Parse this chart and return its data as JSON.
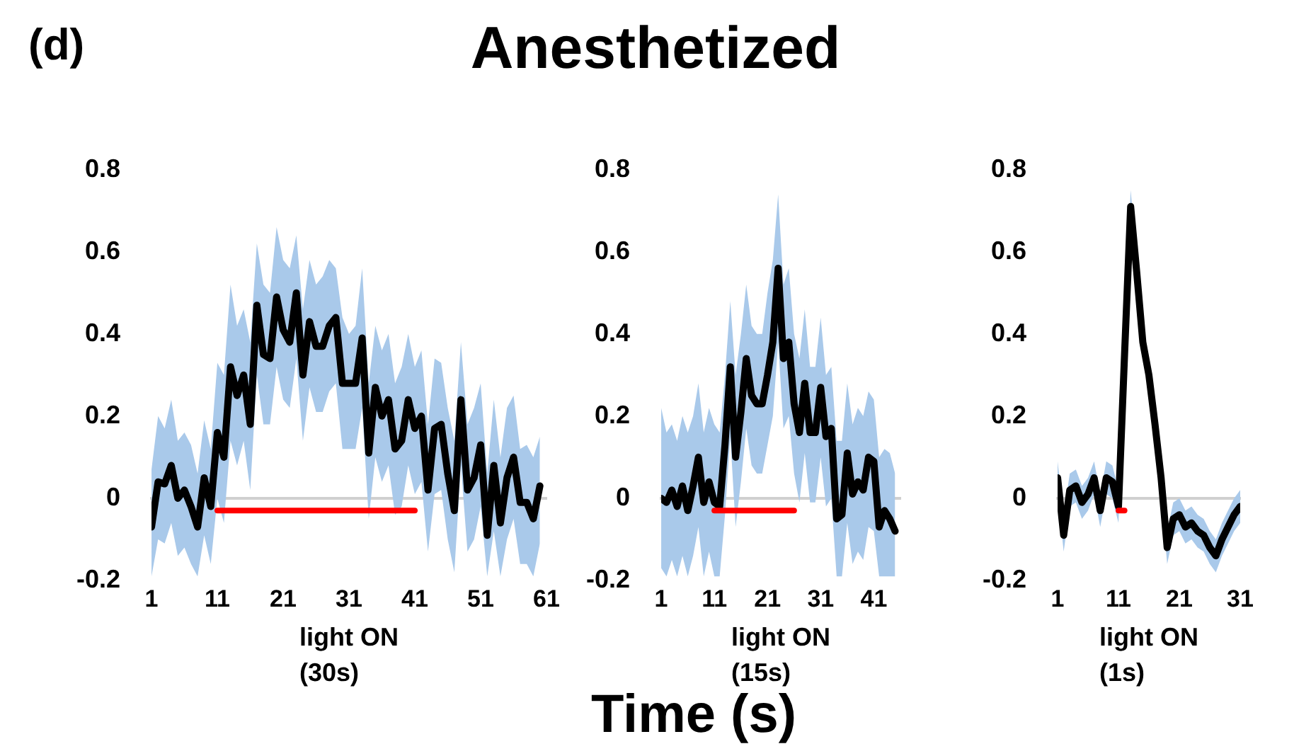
{
  "chart_data": [
    {
      "type": "line",
      "title": "Anesthetized",
      "annotations": [
        "(d)"
      ],
      "xlabel": "light ON\n(30s)",
      "xlim": [
        1,
        61
      ],
      "xticks": [
        1,
        11,
        21,
        31,
        41,
        51,
        61
      ],
      "ylim": [
        -0.2,
        0.8
      ],
      "yticks": [
        -0.2,
        0,
        0.2,
        0.4,
        0.6,
        0.8
      ],
      "legend": false,
      "series": [
        {
          "color": "#000000",
          "x": [
            1,
            2,
            3,
            4,
            5,
            6,
            7,
            8,
            9,
            10,
            11,
            12,
            13,
            14,
            15,
            16,
            17,
            18,
            19,
            20,
            21,
            22,
            23,
            24,
            25,
            26,
            27,
            28,
            29,
            30,
            31,
            32,
            33,
            34,
            35,
            36,
            37,
            38,
            39,
            40,
            41,
            42,
            43,
            44,
            45,
            46,
            47,
            48,
            49,
            50,
            51,
            52,
            53,
            54,
            55,
            56,
            57,
            58,
            59,
            60
          ],
          "values": [
            -0.07,
            0.04,
            0.035,
            0.08,
            0,
            0.02,
            -0.02,
            -0.07,
            0.05,
            -0.02,
            0.16,
            0.1,
            0.32,
            0.25,
            0.3,
            0.18,
            0.47,
            0.35,
            0.34,
            0.49,
            0.41,
            0.38,
            0.5,
            0.3,
            0.43,
            0.37,
            0.37,
            0.42,
            0.44,
            0.28,
            0.28,
            0.28,
            0.39,
            0.11,
            0.27,
            0.2,
            0.24,
            0.12,
            0.14,
            0.24,
            0.17,
            0.2,
            0.02,
            0.17,
            0.18,
            0.06,
            -0.03,
            0.24,
            0.02,
            0.05,
            0.13,
            -0.09,
            0.08,
            -0.06,
            0.05,
            0.1,
            -0.01,
            -0.01,
            -0.05,
            0.03
          ],
          "upper": [
            0.07,
            0.2,
            0.17,
            0.24,
            0.14,
            0.16,
            0.13,
            0.06,
            0.19,
            0.12,
            0.33,
            0.3,
            0.52,
            0.42,
            0.46,
            0.38,
            0.62,
            0.52,
            0.5,
            0.66,
            0.58,
            0.56,
            0.64,
            0.46,
            0.58,
            0.52,
            0.54,
            0.58,
            0.56,
            0.44,
            0.4,
            0.42,
            0.56,
            0.28,
            0.42,
            0.36,
            0.4,
            0.28,
            0.32,
            0.4,
            0.32,
            0.36,
            0.18,
            0.34,
            0.33,
            0.22,
            0.14,
            0.38,
            0.18,
            0.22,
            0.28,
            0.06,
            0.24,
            0.1,
            0.22,
            0.25,
            0.12,
            0.13,
            0.1,
            0.15
          ],
          "lower": [
            -0.19,
            -0.1,
            -0.11,
            -0.06,
            -0.14,
            -0.12,
            -0.16,
            -0.19,
            -0.09,
            -0.16,
            0.0,
            -0.06,
            0.14,
            0.08,
            0.14,
            0.02,
            0.3,
            0.18,
            0.18,
            0.32,
            0.24,
            0.22,
            0.34,
            0.14,
            0.27,
            0.21,
            0.21,
            0.26,
            0.28,
            0.12,
            0.12,
            0.12,
            0.22,
            -0.05,
            0.1,
            0.04,
            0.08,
            -0.04,
            -0.02,
            0.08,
            0.01,
            0.04,
            -0.13,
            0.01,
            0.02,
            -0.1,
            -0.18,
            0.08,
            -0.13,
            -0.1,
            -0.02,
            -0.19,
            -0.08,
            -0.19,
            -0.1,
            -0.05,
            -0.16,
            -0.16,
            -0.19,
            -0.11
          ]
        },
        {
          "color": "#ff0000",
          "x": [
            11,
            41
          ],
          "values": [
            -0.03,
            -0.03
          ]
        }
      ]
    },
    {
      "type": "line",
      "xlabel": "light ON\n(15s)",
      "annotations": [
        "Time (s)"
      ],
      "xlim": [
        1,
        46
      ],
      "xticks": [
        1,
        11,
        21,
        31,
        41
      ],
      "ylim": [
        -0.2,
        0.8
      ],
      "yticks": [
        -0.2,
        0,
        0.2,
        0.4,
        0.6,
        0.8
      ],
      "legend": false,
      "series": [
        {
          "color": "#000000",
          "x": [
            1,
            2,
            3,
            4,
            5,
            6,
            7,
            8,
            9,
            10,
            11,
            12,
            13,
            14,
            15,
            16,
            17,
            18,
            19,
            20,
            21,
            22,
            23,
            24,
            25,
            26,
            27,
            28,
            29,
            30,
            31,
            32,
            33,
            34,
            35,
            36,
            37,
            38,
            39,
            40,
            41,
            42,
            43,
            44,
            45
          ],
          "values": [
            0,
            -0.01,
            0.02,
            -0.02,
            0.03,
            -0.03,
            0.03,
            0.1,
            -0.01,
            0.04,
            -0.01,
            -0.02,
            0.13,
            0.32,
            0.1,
            0.21,
            0.34,
            0.25,
            0.23,
            0.23,
            0.3,
            0.38,
            0.56,
            0.34,
            0.38,
            0.23,
            0.16,
            0.28,
            0.16,
            0.16,
            0.27,
            0.15,
            0.17,
            -0.05,
            -0.04,
            0.11,
            0.01,
            0.04,
            0.02,
            0.1,
            0.09,
            -0.07,
            -0.03,
            -0.05,
            -0.08
          ],
          "upper": [
            0.22,
            0.16,
            0.18,
            0.14,
            0.2,
            0.16,
            0.2,
            0.28,
            0.16,
            0.22,
            0.18,
            0.16,
            0.3,
            0.48,
            0.3,
            0.4,
            0.52,
            0.42,
            0.4,
            0.4,
            0.5,
            0.58,
            0.74,
            0.52,
            0.56,
            0.4,
            0.34,
            0.46,
            0.32,
            0.32,
            0.44,
            0.3,
            0.32,
            0.14,
            0.14,
            0.28,
            0.18,
            0.22,
            0.2,
            0.26,
            0.24,
            0.1,
            0.12,
            0.11,
            0.06
          ],
          "lower": [
            -0.17,
            -0.19,
            -0.15,
            -0.19,
            -0.14,
            -0.19,
            -0.14,
            -0.07,
            -0.19,
            -0.13,
            -0.19,
            -0.19,
            -0.04,
            0.15,
            -0.07,
            0.04,
            0.17,
            0.08,
            0.06,
            0.06,
            0.13,
            0.2,
            0.38,
            0.17,
            0.2,
            0.06,
            -0.01,
            0.11,
            -0.01,
            -0.01,
            0.1,
            -0.02,
            0.0,
            -0.19,
            -0.19,
            -0.06,
            -0.16,
            -0.13,
            -0.15,
            -0.07,
            -0.08,
            -0.19,
            -0.19,
            -0.19,
            -0.19
          ]
        },
        {
          "color": "#ff0000",
          "x": [
            11,
            26
          ],
          "values": [
            -0.03,
            -0.03
          ]
        }
      ]
    },
    {
      "type": "line",
      "xlabel": "light ON\n(1s)",
      "xlim": [
        1,
        31
      ],
      "xticks": [
        1,
        11,
        21,
        31
      ],
      "ylim": [
        -0.2,
        0.8
      ],
      "yticks": [
        -0.2,
        0,
        0.2,
        0.4,
        0.6,
        0.8
      ],
      "legend": false,
      "series": [
        {
          "color": "#000000",
          "x": [
            1,
            2,
            3,
            4,
            5,
            6,
            7,
            8,
            9,
            10,
            11,
            12,
            13,
            14,
            15,
            16,
            17,
            18,
            19,
            20,
            21,
            22,
            23,
            24,
            25,
            26,
            27,
            28,
            29,
            30,
            31
          ],
          "values": [
            0.05,
            -0.09,
            0.02,
            0.03,
            -0.01,
            0.01,
            0.05,
            -0.03,
            0.05,
            0.04,
            -0.02,
            0.35,
            0.71,
            0.55,
            0.38,
            0.3,
            0.18,
            0.05,
            -0.12,
            -0.05,
            -0.04,
            -0.07,
            -0.06,
            -0.08,
            -0.09,
            -0.12,
            -0.14,
            -0.1,
            -0.07,
            -0.04,
            -0.02
          ],
          "upper": [
            0.09,
            -0.04,
            0.06,
            0.07,
            0.03,
            0.05,
            0.09,
            0.01,
            0.09,
            0.08,
            0.02,
            0.39,
            0.75,
            0.59,
            0.42,
            0.34,
            0.22,
            0.09,
            -0.08,
            -0.01,
            0.0,
            -0.03,
            -0.02,
            -0.04,
            -0.05,
            -0.08,
            -0.1,
            -0.06,
            -0.03,
            0.0,
            0.02
          ],
          "lower": [
            0.01,
            -0.13,
            -0.02,
            -0.01,
            -0.05,
            -0.03,
            0.01,
            -0.07,
            0.01,
            0.0,
            -0.06,
            0.31,
            0.67,
            0.51,
            0.34,
            0.26,
            0.14,
            0.01,
            -0.16,
            -0.09,
            -0.08,
            -0.11,
            -0.1,
            -0.12,
            -0.13,
            -0.16,
            -0.18,
            -0.14,
            -0.11,
            -0.08,
            -0.06
          ]
        },
        {
          "color": "#ff0000",
          "x": [
            11,
            12
          ],
          "values": [
            -0.03,
            -0.03
          ]
        }
      ]
    }
  ]
}
